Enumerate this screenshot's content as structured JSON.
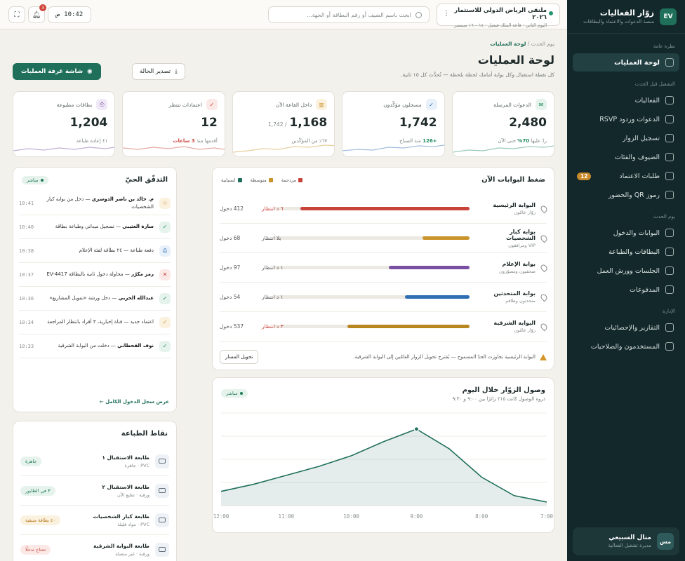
{
  "brand": {
    "logo": "EV",
    "title": "زوّار الفعاليات",
    "subtitle": "منصة الدعوات والاعتماد والبطاقات"
  },
  "sidebar": {
    "sections": [
      {
        "label": "نظرة عامة",
        "items": [
          {
            "label": "لوحة العمليات",
            "icon": "grid-icon",
            "active": true
          }
        ]
      },
      {
        "label": "التشغيل قبل الحدث",
        "items": [
          {
            "label": "الفعاليات",
            "icon": "calendar-icon"
          },
          {
            "label": "الدعوات وردود RSVP",
            "icon": "mail-icon"
          },
          {
            "label": "تسجيل الزوار",
            "icon": "user-plus-icon"
          },
          {
            "label": "الضيوف والفئات",
            "icon": "users-icon"
          },
          {
            "label": "طلبات الاعتماد",
            "icon": "shield-icon",
            "badge": "12"
          },
          {
            "label": "رموز QR والحضور",
            "icon": "qr-icon"
          }
        ]
      },
      {
        "label": "يوم الحدث",
        "items": [
          {
            "label": "البوابات والدخول",
            "icon": "door-icon"
          },
          {
            "label": "البطاقات والطباعة",
            "icon": "badge-icon"
          },
          {
            "label": "الجلسات وورش العمل",
            "icon": "list-icon"
          },
          {
            "label": "المدفوعات",
            "icon": "card-icon"
          }
        ]
      },
      {
        "label": "الإدارة",
        "items": [
          {
            "label": "التقارير والإحصائيات",
            "icon": "chart-icon"
          },
          {
            "label": "المستخدمون والصلاحيات",
            "icon": "gear-icon"
          }
        ]
      }
    ],
    "user": {
      "initials": "مس",
      "name": "منال السبيعي",
      "role": "مديرة تشغيل الفعالية"
    }
  },
  "topbar": {
    "event_name": "ملتقى الرياض الدولي للاستثمار ٢٠٢٦",
    "event_meta": "اليوم الثاني · قاعة الملك فيصل · ١٤ – ١٦ سبتمبر",
    "search_placeholder": "ابحث باسم الضيف أو رقم البطاقة أو الجهة...",
    "clock": "10:42",
    "clock_suffix": "ص",
    "notif_count": "3"
  },
  "header": {
    "breadcrumb_root": "يوم الحدث",
    "breadcrumb_current": "لوحة العمليات",
    "title": "لوحة العمليات",
    "subtitle": "كل نقطة استقبال وكل بوابة أمامك لحظة بلحظة — تُحدَّث كل ١٥ ثانية.",
    "export_label": "تصدير الحالة",
    "war_room_label": "شاشة غرفة العمليات"
  },
  "kpis": [
    {
      "label": "الدعوات المرسلة",
      "value": "2,480",
      "sub_pre": "ردّ عليها",
      "sub_hl": "70%",
      "sub_post": "حتى الآن",
      "hl": "g",
      "color": "#1f8a5e",
      "bg": "#e6f3ec",
      "icon": "mail-icon",
      "glyph": "✉",
      "trend": [
        0.2,
        0.35,
        0.3,
        0.5,
        0.45,
        0.6,
        0.55,
        0.7
      ]
    },
    {
      "label": "مسجلون مؤكّدون",
      "value": "1,742",
      "sub_pre": "",
      "sub_hl": "+126",
      "sub_post": "منذ الصباح",
      "hl": "g",
      "color": "#2f6fb3",
      "bg": "#e8f0f9",
      "icon": "user-check-icon",
      "glyph": "✓",
      "trend": [
        0.3,
        0.4,
        0.35,
        0.55,
        0.5,
        0.65,
        0.6,
        0.75
      ]
    },
    {
      "label": "داخل القاعة الآن",
      "value": "1,168",
      "value_suffix": "/ 1,742",
      "sub_pre": "٦٧٪ من المؤكّدين",
      "sub_hl": "",
      "sub_post": "",
      "hl": "g",
      "color": "#c9942b",
      "bg": "#fbf1df",
      "icon": "door-icon",
      "glyph": "▥",
      "trend": [
        0.2,
        0.3,
        0.45,
        0.4,
        0.6,
        0.55,
        0.7,
        0.65
      ]
    },
    {
      "label": "اعتمادات تنتظر",
      "value": "12",
      "sub_pre": "أقدمها منذ",
      "sub_hl": "3 ساعات",
      "sub_post": "",
      "hl": "r",
      "color": "#c8433a",
      "bg": "#fbe9e7",
      "icon": "shield-icon",
      "glyph": "✓",
      "trend": [
        0.5,
        0.4,
        0.55,
        0.45,
        0.6,
        0.4,
        0.5,
        0.35
      ]
    },
    {
      "label": "بطاقات مطبوعة",
      "value": "1,204",
      "sub_pre": "٤١ إعادة طباعة",
      "sub_hl": "",
      "sub_post": "",
      "hl": "g",
      "color": "#7a4fa3",
      "bg": "#f0e9f7",
      "icon": "printer-icon",
      "glyph": "⎙",
      "trend": [
        0.3,
        0.45,
        0.35,
        0.5,
        0.4,
        0.55,
        0.45,
        0.6
      ]
    }
  ],
  "gates": {
    "title": "ضغط البوابات الآن",
    "legend": [
      {
        "label": "مزدحمة",
        "color": "#c8433a"
      },
      {
        "label": "متوسطة",
        "color": "#c9942b"
      },
      {
        "label": "انسيابية",
        "color": "#1f6f5a"
      }
    ],
    "rows": [
      {
        "name": "البوابة الرئيسية",
        "sub": "زوّار عامّون",
        "queue": "٦ د انتظار",
        "warn": true,
        "count": "412 دخول",
        "load": 0.86,
        "color": "#c8433a"
      },
      {
        "name": "بوابة كبار الشخصيات",
        "sub": "VIP ومرافقون",
        "queue": "بلا انتظار",
        "warn": false,
        "count": "68 دخول",
        "load": 0.24,
        "color": "#c9942b"
      },
      {
        "name": "بوابة الإعلام",
        "sub": "صحفيون ومصوّرون",
        "queue": "١ د انتظار",
        "warn": false,
        "count": "97 دخول",
        "load": 0.41,
        "color": "#7a4fa3"
      },
      {
        "name": "بوابة المتحدثين",
        "sub": "متحدثون وطاقم",
        "queue": "١ د انتظار",
        "warn": false,
        "count": "54 دخول",
        "load": 0.33,
        "color": "#2f6fb3"
      },
      {
        "name": "البوابة الشرقية",
        "sub": "زوّار عامّون",
        "queue": "٣ د انتظار",
        "warn": true,
        "count": "537 دخول",
        "load": 0.62,
        "color": "#b8861f"
      }
    ],
    "alert": "البوابة الرئيسية تجاوزت الحدّ المسموح — يُقترح تحويل الزوار العامّين إلى البوابة الشرقية.",
    "reroute_label": "تحويل المسار"
  },
  "arrivals": {
    "title": "وصول الزوّار خلال اليوم",
    "subtitle": "ذروة الوصول كانت ٢١٥ زائرًا بين ٩:٠٠ و ٩:٣٠",
    "live": "مباشر"
  },
  "chart_data": {
    "type": "area",
    "title": "وصول الزوّار خلال اليوم",
    "x": [
      "7:00",
      "7:30",
      "8:00",
      "8:30",
      "9:00",
      "9:30",
      "10:00",
      "10:30",
      "11:00",
      "11:30",
      "12:00"
    ],
    "tick_labels": [
      "7:00",
      "8:00",
      "9:00",
      "10:00",
      "11:00",
      "12:00"
    ],
    "values": [
      10,
      28,
      80,
      160,
      215,
      180,
      140,
      110,
      85,
      60,
      40
    ],
    "peak_index": 4,
    "ylim": [
      0,
      260
    ],
    "grid": true,
    "color": "#1f6f5a"
  },
  "feed": {
    "title": "التدفّق الحيّ",
    "live": "مباشر",
    "items": [
      {
        "time": "10:41",
        "bold": "م. خالد بن ناصر الدوسري",
        "text": " — دخل من بوابة كبار الشخصيات",
        "glyph": "☆",
        "color": "#c9942b",
        "bg": "#fbf1df",
        "icon": "star-icon"
      },
      {
        "time": "10:40",
        "bold": "سارة العتيبي",
        "text": " — تسجيل ميداني وطباعة بطاقة",
        "glyph": "✓",
        "color": "#1f8a5e",
        "bg": "#e6f3ec",
        "icon": "check-icon"
      },
      {
        "time": "10:38",
        "bold": "",
        "text": "دفعة طباعة — ٢٤ بطاقة لفئة الإعلام",
        "glyph": "⎙",
        "color": "#2f6fb3",
        "bg": "#e8f0f9",
        "icon": "printer-icon"
      },
      {
        "time": "10:37",
        "bold": "رمز مكرّر",
        "text": " — محاولة دخول ثانية بالبطاقة EV-4417",
        "glyph": "✕",
        "color": "#c8433a",
        "bg": "#fbe9e7",
        "icon": "x-icon"
      },
      {
        "time": "10:36",
        "bold": "عبدالله الحربي",
        "text": " — دخل ورشة «تمويل المشاريع»",
        "glyph": "✓",
        "color": "#1f8a5e",
        "bg": "#e6f3ec",
        "icon": "check-icon"
      },
      {
        "time": "10:34",
        "bold": "",
        "text": "اعتماد جديد — قناة إخبارية، ٣ أفراد بانتظار المراجعة",
        "glyph": "✓",
        "color": "#c9942b",
        "bg": "#fbf1df",
        "icon": "shield-icon"
      },
      {
        "time": "10:33",
        "bold": "نوف القحطاني",
        "text": " — دخلت من البوابة الشرقية",
        "glyph": "✓",
        "color": "#1f8a5e",
        "bg": "#e6f3ec",
        "icon": "check-icon"
      }
    ],
    "link": "عرض سجل الدخول الكامل ←"
  },
  "printers": {
    "title": "نقاط الطباعة",
    "items": [
      {
        "name": "طابعة الاستقبال ١",
        "sub": "PVC · جاهزة",
        "status": "جاهزة",
        "fg": "#1f7a58",
        "bg": "#e6f3ec"
      },
      {
        "name": "طابعة الاستقبال ٢",
        "sub": "ورقية · تطبع الآن",
        "status": "٣ في الطابور",
        "fg": "#1f7a58",
        "bg": "#e6f3ec"
      },
      {
        "name": "طابعة كبار الشخصيات",
        "sub": "PVC · مواد قليلة",
        "status": "٤٠ بطاقة متبقية",
        "fg": "#b5791d",
        "bg": "#fbf1df"
      },
      {
        "name": "طابعة البوابة الشرقية",
        "sub": "ورقية · غير متصلة",
        "status": "تحتاج تدخلًا",
        "fg": "#c8433a",
        "bg": "#fbe9e7"
      }
    ]
  }
}
